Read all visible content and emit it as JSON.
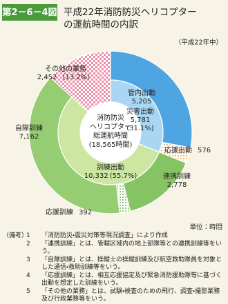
{
  "figure_number": "第2－6－4図",
  "chart_data": {
    "type": "donut",
    "title": [
      "平成22年消防防災ヘリコプター",
      "の運航時間の内訳"
    ],
    "subtitle": "（平成22年中）",
    "center_label": [
      "消防防災",
      "ヘリコプター",
      "総運航時間",
      "(18,565時間)"
    ],
    "unit": "単位：時間",
    "inner": {
      "categories": [
        "災害出動",
        "訓練出動",
        "その他の業務"
      ],
      "values": [
        5781,
        10332,
        2452
      ],
      "value_labels": [
        "5,781",
        "10,332",
        "2,452"
      ],
      "shares": [
        31.1,
        55.7,
        13.2
      ],
      "share_labels": [
        "(31.1%)",
        "(55.7%)",
        "（13.2%）"
      ],
      "colors": [
        "#a9d7f3",
        "#cde6a2",
        "#ee8ea8"
      ],
      "hatch": [
        "none",
        "none",
        "check"
      ]
    },
    "outer": {
      "categories": [
        "管内出動",
        "応援出動",
        "連携訓練",
        "応援訓練",
        "自隊訓練"
      ],
      "values": [
        5205,
        576,
        2778,
        392,
        7162
      ],
      "value_labels": [
        "5,205",
        "576",
        "2,778",
        "392",
        "7,162"
      ],
      "colors": [
        "#4ea5e2",
        "#f0a040",
        "#86c463",
        "#6fb84c",
        "#96cc72"
      ],
      "hatch": [
        "none",
        "dots",
        "none",
        "dots",
        "none"
      ]
    }
  },
  "notes": {
    "heading": "（備考）",
    "items": [
      {
        "number": "1",
        "text": "「消防防災・震災対策等現況調査」により作成"
      },
      {
        "number": "2",
        "text": "「連携訓練」とは、管轄区域内の地上部隊等との連携訓練等をいう。"
      },
      {
        "number": "3",
        "text": "「自隊訓練」とは、操縦士の操縦訓練及び航空救助隊員を対象とした通信・救助訓練等をいう。"
      },
      {
        "number": "4",
        "text": "「応援訓練」とは、相互応援協定及び緊急消防援助隊等に基づく出動を想定した訓練をいう。"
      },
      {
        "number": "5",
        "text": "「その他の業務」とは、試験・検査のための飛行、調査・撮影業務及び行政業務等をいう。"
      }
    ]
  }
}
